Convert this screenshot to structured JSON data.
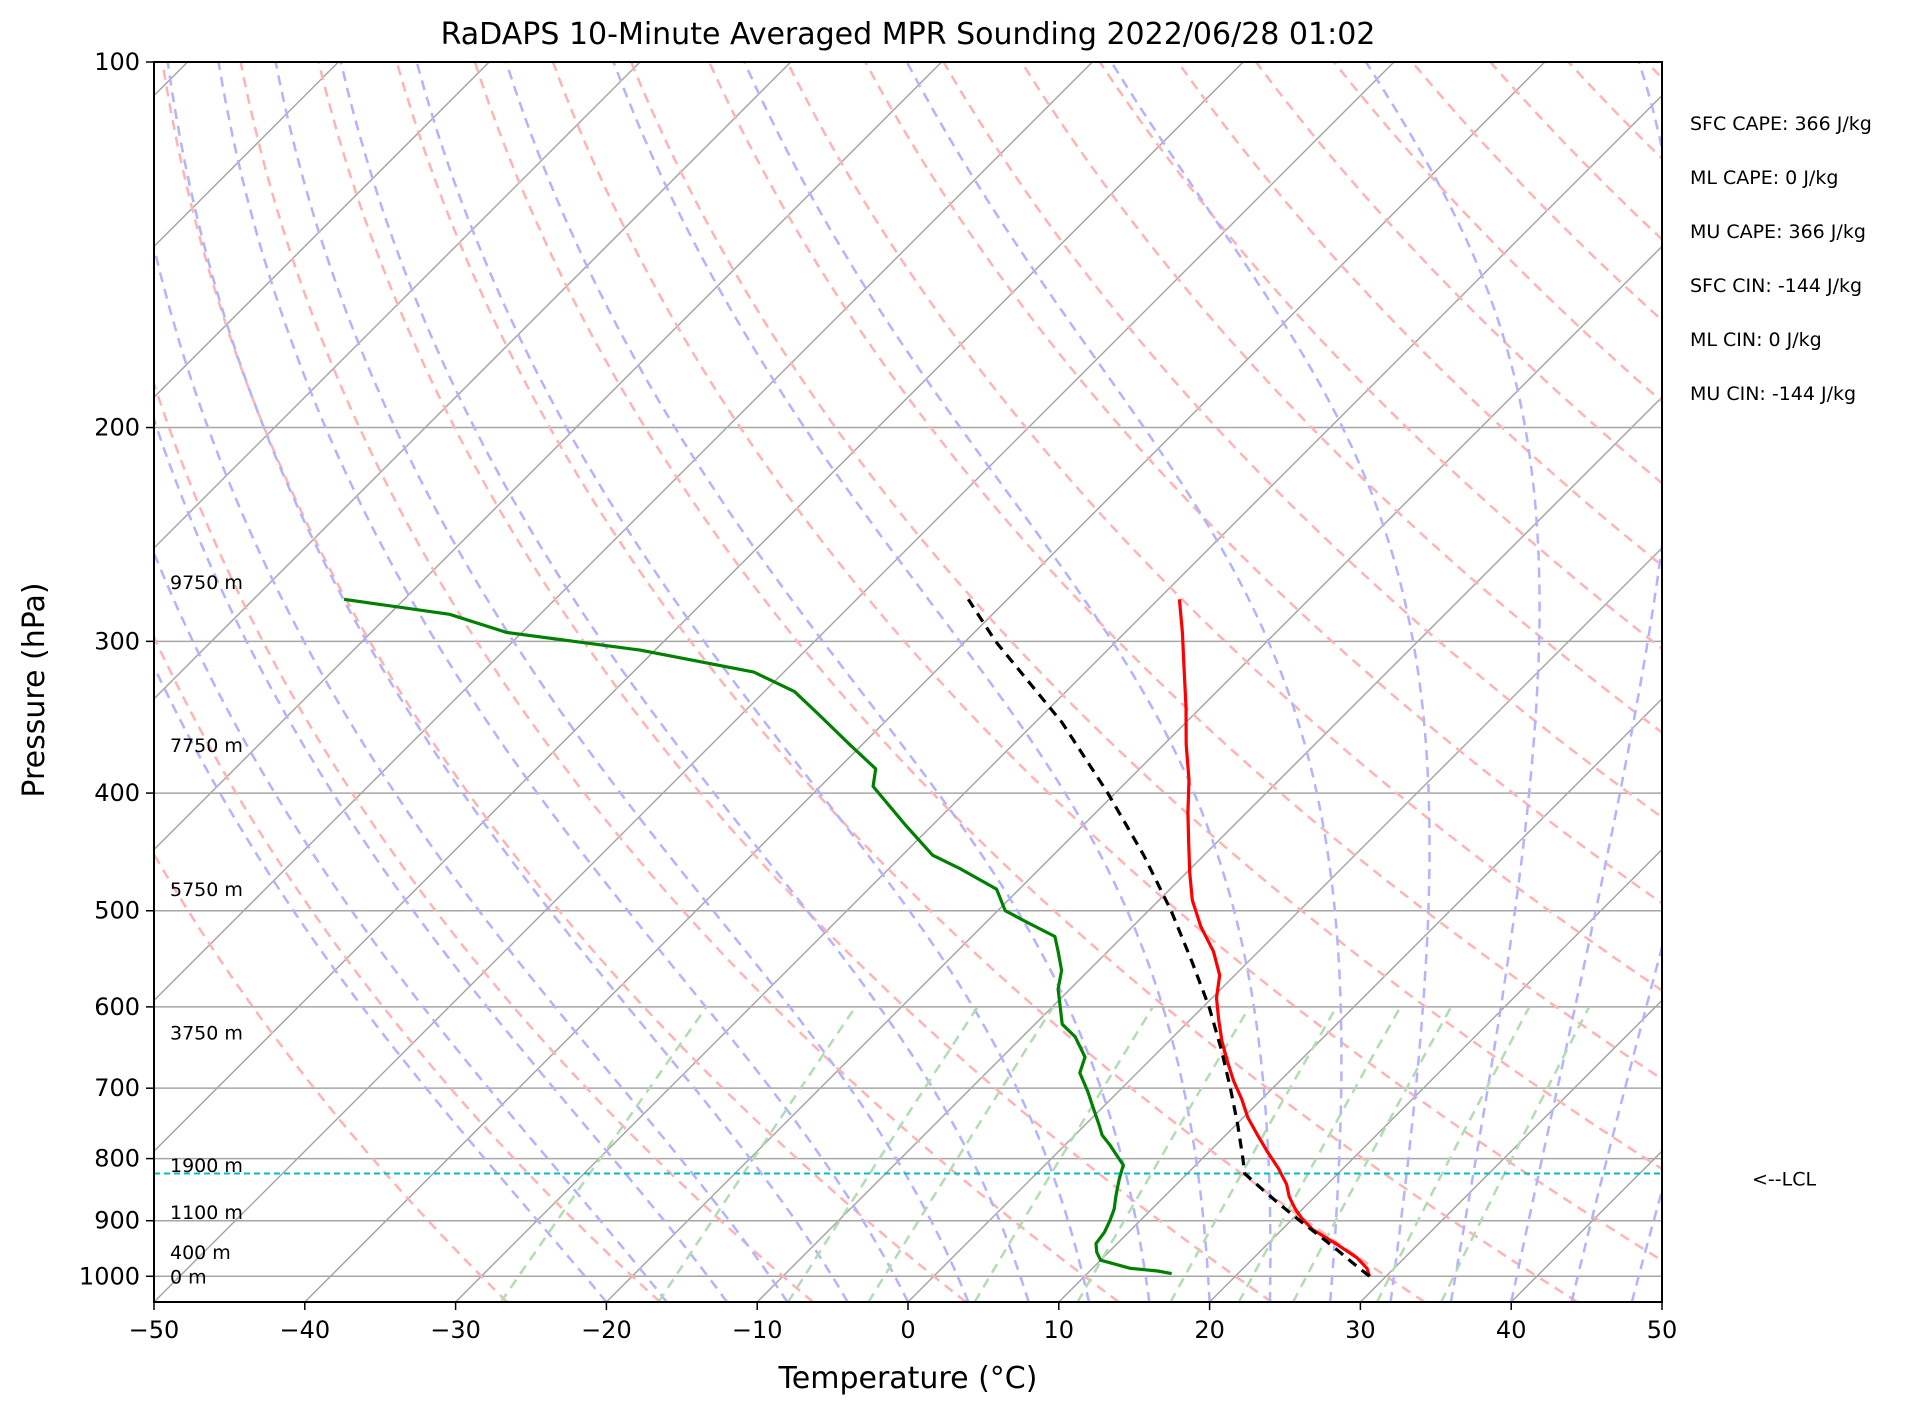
{
  "chart_data": {
    "type": "skew-t log-p",
    "title": "RaDAPS 10-Minute Averaged MPR Sounding 2022/06/28 01:02",
    "xlabel": "Temperature (°C)",
    "ylabel": "Pressure (hPa)",
    "xlim": [
      -50,
      50
    ],
    "ylim": [
      1050,
      100
    ],
    "y_scale": "log",
    "skew_degrees": 45,
    "grid": true,
    "x_ticks": [
      -50,
      -40,
      -30,
      -20,
      -10,
      0,
      10,
      20,
      30,
      40,
      50
    ],
    "x_tick_labels": [
      "−50",
      "−40",
      "−30",
      "−20",
      "−10",
      "0",
      "10",
      "20",
      "30",
      "40",
      "50"
    ],
    "y_ticks": [
      1000,
      900,
      800,
      700,
      600,
      500,
      400,
      300,
      200,
      100
    ],
    "y_tick_labels": [
      "1000",
      "900",
      "800",
      "700",
      "600",
      "500",
      "400",
      "300",
      "200",
      "100"
    ],
    "colors": {
      "temperature": "#ff0000",
      "dewpoint": "#008000",
      "parcel": "#000000",
      "lcl": "#00bfbf",
      "isotherm": "#a6a6a6",
      "dry_adiabat": "#ffb3b3",
      "moist_adiabat": "#b3b3ff",
      "mixing_ratio": "#b3dcb3"
    },
    "temperature_profile": {
      "pressure": [
        1000,
        985,
        965,
        940,
        915,
        895,
        880,
        860,
        840,
        815,
        790,
        765,
        740,
        715,
        690,
        665,
        640,
        615,
        590,
        565,
        540,
        515,
        490,
        465,
        440,
        415,
        390,
        365,
        340,
        315,
        295,
        277
      ],
      "values": [
        28.9,
        28.2,
        26.8,
        24.5,
        22.0,
        20.5,
        19.5,
        18.3,
        17.3,
        15.7,
        13.9,
        12.1,
        10.3,
        8.7,
        6.9,
        5.2,
        3.5,
        1.9,
        0.3,
        -1.0,
        -3.0,
        -5.5,
        -7.8,
        -9.8,
        -11.8,
        -13.9,
        -16.0,
        -18.5,
        -21.0,
        -23.8,
        -26.2,
        -28.6
      ]
    },
    "dewpoint_profile": {
      "pressure": [
        995,
        990,
        985,
        970,
        955,
        950,
        940,
        920,
        900,
        880,
        860,
        845,
        830,
        810,
        780,
        765,
        750,
        725,
        705,
        680,
        660,
        635,
        620,
        595,
        580,
        560,
        540,
        525,
        510,
        500,
        480,
        462,
        450,
        425,
        395,
        382,
        365,
        345,
        330,
        318,
        305,
        295,
        285,
        277
      ],
      "values": [
        15.6,
        14.5,
        12.5,
        10.0,
        9.2,
        9.0,
        8.6,
        8.4,
        8.0,
        7.5,
        6.8,
        6.3,
        5.8,
        5.2,
        3.0,
        1.8,
        0.9,
        -0.7,
        -2.0,
        -3.8,
        -4.5,
        -6.5,
        -8.2,
        -9.8,
        -10.8,
        -11.8,
        -13.3,
        -14.5,
        -17.5,
        -19.5,
        -21.5,
        -25.2,
        -28.0,
        -31.8,
        -36.5,
        -37.5,
        -40.8,
        -44.8,
        -48.0,
        -52.0,
        -61.0,
        -71.0,
        -76.0,
        -84.0
      ]
    },
    "parcel_profile": {
      "pressure": [
        1000,
        975,
        950,
        925,
        900,
        875,
        850,
        823,
        800,
        750,
        700,
        650,
        600,
        550,
        500,
        450,
        400,
        350,
        300,
        277
      ],
      "values": [
        28.9,
        26.9,
        24.9,
        22.8,
        20.6,
        18.4,
        16.2,
        13.8,
        12.7,
        10.1,
        7.2,
        4.0,
        0.4,
        -3.8,
        -8.5,
        -14.0,
        -20.5,
        -28.2,
        -38.0,
        -42.6
      ]
    },
    "lcl_pressure": 823,
    "lcl_label": "<--LCL",
    "height_labels": [
      {
        "text": "0 m",
        "pressure": 1000
      },
      {
        "text": "400 m",
        "pressure": 955
      },
      {
        "text": "1100 m",
        "pressure": 885
      },
      {
        "text": "1900 m",
        "pressure": 810
      },
      {
        "text": "3750 m",
        "pressure": 630
      },
      {
        "text": "5750 m",
        "pressure": 480
      },
      {
        "text": "7750 m",
        "pressure": 365
      },
      {
        "text": "9750 m",
        "pressure": 268
      }
    ],
    "annotations": [
      "SFC CAPE: 366 J/kg",
      "ML CAPE: 0 J/kg",
      "MU CAPE: 366 J/kg",
      "SFC CIN: -144 J/kg",
      "ML CIN: 0 J/kg",
      "MU CIN: -144 J/kg"
    ]
  }
}
